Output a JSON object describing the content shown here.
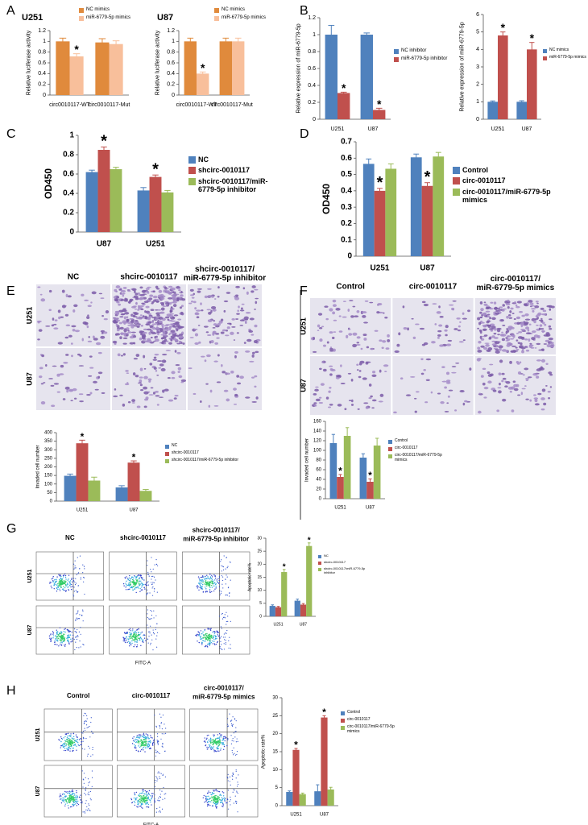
{
  "panels": {
    "labels": [
      "A",
      "B",
      "C",
      "D",
      "E",
      "F",
      "G",
      "H"
    ],
    "E": {
      "headers": [
        [
          "NC"
        ],
        [
          "shcirc-0010117"
        ],
        [
          "shcirc-0010117/",
          "miR-6779-5p inhibitor"
        ]
      ],
      "rows": [
        "U251",
        "U87"
      ]
    },
    "F": {
      "headers": [
        [
          "Control"
        ],
        [
          "circ-0010117"
        ],
        [
          "circ-0010117/",
          "miR-6779-5p mimics"
        ]
      ],
      "rows": [
        "U251",
        "U87"
      ]
    },
    "G": {
      "headers": [
        [
          "NC"
        ],
        [
          "shcirc-0010117"
        ],
        [
          "shcirc-0010117/",
          "miR-6779-5p inhibitor"
        ]
      ],
      "rows": [
        "U251",
        "U87"
      ],
      "x_label": "FITC-A"
    },
    "H": {
      "headers": [
        [
          "Control"
        ],
        [
          "circ-0010117"
        ],
        [
          "circ-0010117/",
          "miR-6779-5p mimics"
        ]
      ],
      "rows": [
        "U251",
        "U87"
      ],
      "x_label": "FITC-A"
    }
  },
  "chart_data": [
    {
      "type": "bar",
      "title": "U251",
      "y_label": "Relative luciferase activity",
      "categories": [
        "circ0010117-WT",
        "circ0010117-Mut"
      ],
      "series": [
        {
          "name": "NC mimics",
          "color": "#e08a3c",
          "values": [
            1.0,
            0.98
          ],
          "errors": [
            0.06,
            0.07
          ],
          "annotations": [
            null,
            null
          ]
        },
        {
          "name": "miR-6779-5p mimics",
          "color": "#f8bf9b",
          "values": [
            0.72,
            0.95
          ],
          "errors": [
            0.05,
            0.06
          ],
          "annotations": [
            "*",
            null
          ]
        }
      ],
      "ylim": [
        0,
        1.2
      ],
      "yticks": [
        0,
        0.2,
        0.4,
        0.6,
        0.8,
        1,
        1.2
      ]
    },
    {
      "type": "bar",
      "title": "U87",
      "y_label": "Relative luciferase activity",
      "categories": [
        "circ0010117-WT",
        "circ0010117-Mut"
      ],
      "series": [
        {
          "name": "NC mimics",
          "color": "#e08a3c",
          "values": [
            1.0,
            1.0
          ],
          "errors": [
            0.06,
            0.06
          ],
          "annotations": [
            null,
            null
          ]
        },
        {
          "name": "miR-6779-5p mimics",
          "color": "#f8bf9b",
          "values": [
            0.4,
            1.0
          ],
          "errors": [
            0.03,
            0.06
          ],
          "annotations": [
            "*",
            null
          ]
        }
      ],
      "ylim": [
        0,
        1.2
      ],
      "yticks": [
        0,
        0.2,
        0.4,
        0.6,
        0.8,
        1,
        1.2
      ]
    },
    {
      "type": "bar",
      "y_label": "Relative expression of miR-6779-5p",
      "categories": [
        "U251",
        "U87"
      ],
      "series": [
        {
          "name": "NC inhibitor",
          "color": "#4f81bd",
          "values": [
            1.0,
            1.0
          ],
          "errors": [
            0.11,
            0.02
          ],
          "annotations": [
            null,
            null
          ]
        },
        {
          "name": "miR-6779-5p inhibitor",
          "color": "#c0504d",
          "values": [
            0.31,
            0.11
          ],
          "errors": [
            0.01,
            0.02
          ],
          "annotations": [
            "*",
            "*"
          ]
        }
      ],
      "ylim": [
        0,
        1.2
      ],
      "yticks": [
        0,
        0.2,
        0.4,
        0.6,
        0.8,
        1,
        1.2
      ]
    },
    {
      "type": "bar",
      "y_label": "Relative expression of miR-6779-5p",
      "categories": [
        "U251",
        "U87"
      ],
      "series": [
        {
          "name": "NC mimics",
          "color": "#4f81bd",
          "values": [
            1.0,
            1.0
          ],
          "errors": [
            0.05,
            0.06
          ],
          "annotations": [
            null,
            null
          ]
        },
        {
          "name": "miR-6779-5p mimics",
          "color": "#c0504d",
          "values": [
            4.8,
            4.0
          ],
          "errors": [
            0.2,
            0.4
          ],
          "annotations": [
            "*",
            "*"
          ]
        }
      ],
      "ylim": [
        0,
        6
      ],
      "yticks": [
        0,
        1,
        2,
        3,
        4,
        5,
        6
      ]
    },
    {
      "type": "bar",
      "y_label": "OD450",
      "categories": [
        "U87",
        "U251"
      ],
      "series": [
        {
          "name": "NC",
          "color": "#4f81bd",
          "values": [
            0.62,
            0.43
          ],
          "errors": [
            0.02,
            0.03
          ],
          "annotations": [
            null,
            null
          ]
        },
        {
          "name": "shcirc-0010117",
          "color": "#c0504d",
          "values": [
            0.85,
            0.57
          ],
          "errors": [
            0.03,
            0.02
          ],
          "annotations": [
            "*",
            "*"
          ]
        },
        {
          "name": "shcirc-0010117/miR-6779-5p inhibitor",
          "color": "#9bbb59",
          "values": [
            0.65,
            0.41
          ],
          "errors": [
            0.02,
            0.02
          ],
          "annotations": [
            null,
            null
          ]
        }
      ],
      "ylim": [
        0,
        1
      ],
      "yticks": [
        0,
        0.2,
        0.4,
        0.6,
        0.8,
        1
      ]
    },
    {
      "type": "bar",
      "y_label": "OD450",
      "categories": [
        "U251",
        "U87"
      ],
      "series": [
        {
          "name": "Control",
          "color": "#4f81bd",
          "values": [
            0.565,
            0.605
          ],
          "errors": [
            0.03,
            0.02
          ],
          "annotations": [
            null,
            null
          ]
        },
        {
          "name": "circ-0010117",
          "color": "#c0504d",
          "values": [
            0.4,
            0.43
          ],
          "errors": [
            0.015,
            0.02
          ],
          "annotations": [
            "*",
            "*"
          ]
        },
        {
          "name": "circ-0010117/miR-6779-5p mimics",
          "color": "#9bbb59",
          "values": [
            0.535,
            0.61
          ],
          "errors": [
            0.03,
            0.025
          ],
          "annotations": [
            null,
            null
          ]
        }
      ],
      "ylim": [
        0,
        0.7
      ],
      "yticks": [
        0,
        0.1,
        0.2,
        0.3,
        0.4,
        0.5,
        0.6,
        0.7
      ]
    },
    {
      "type": "bar",
      "y_label": "Invaded cell number",
      "categories": [
        "U251",
        "U87"
      ],
      "series": [
        {
          "name": "NC",
          "color": "#4f81bd",
          "values": [
            148,
            80
          ],
          "errors": [
            10,
            10
          ],
          "annotations": [
            null,
            null
          ]
        },
        {
          "name": "shcirc-0010117",
          "color": "#c0504d",
          "values": [
            338,
            225
          ],
          "errors": [
            18,
            10
          ],
          "annotations": [
            "*",
            "*"
          ]
        },
        {
          "name": "shcirc-0010117/miR-6779-5p inhibitor",
          "color": "#9bbb59",
          "values": [
            120,
            60
          ],
          "errors": [
            20,
            8
          ],
          "annotations": [
            null,
            null
          ]
        }
      ],
      "ylim": [
        0,
        400
      ],
      "yticks": [
        0,
        50,
        100,
        150,
        200,
        250,
        300,
        350,
        400
      ]
    },
    {
      "type": "bar",
      "y_label": "Invaded cell number",
      "categories": [
        "U251",
        "U87"
      ],
      "series": [
        {
          "name": "Control",
          "color": "#4f81bd",
          "values": [
            115,
            85
          ],
          "errors": [
            18,
            8
          ],
          "annotations": [
            null,
            null
          ]
        },
        {
          "name": "circ-0010117",
          "color": "#c0504d",
          "values": [
            45,
            35
          ],
          "errors": [
            5,
            6
          ],
          "annotations": [
            "*",
            "*"
          ]
        },
        {
          "name": "circ-0010117/miR-6779-5p mimics",
          "color": "#9bbb59",
          "values": [
            130,
            110
          ],
          "errors": [
            17,
            15
          ],
          "annotations": [
            null,
            null
          ]
        }
      ],
      "ylim": [
        0,
        160
      ],
      "yticks": [
        0,
        20,
        40,
        60,
        80,
        100,
        120,
        140,
        160
      ]
    },
    {
      "type": "bar",
      "y_label": "Apoptotic rate%",
      "categories": [
        "U251",
        "U87"
      ],
      "series": [
        {
          "name": "NC",
          "color": "#4f81bd",
          "values": [
            4,
            6
          ],
          "errors": [
            0.4,
            0.6
          ],
          "annotations": [
            null,
            null
          ]
        },
        {
          "name": "shcirc-0010117",
          "color": "#c0504d",
          "values": [
            3.5,
            4.5
          ],
          "errors": [
            0.3,
            0.4
          ],
          "annotations": [
            null,
            null
          ]
        },
        {
          "name": "shcirc-0010117/miR-6779-5p inhibitor",
          "color": "#9bbb59",
          "values": [
            17,
            27
          ],
          "errors": [
            1,
            1.2
          ],
          "annotations": [
            "*",
            "*"
          ]
        }
      ],
      "ylim": [
        0,
        30
      ],
      "yticks": [
        0,
        5,
        10,
        15,
        20,
        25,
        30
      ]
    },
    {
      "type": "bar",
      "y_label": "Apoptotic rate%",
      "categories": [
        "U251",
        "U87"
      ],
      "series": [
        {
          "name": "Control",
          "color": "#4f81bd",
          "values": [
            3.8,
            4
          ],
          "errors": [
            0.3,
            1.8
          ],
          "annotations": [
            null,
            null
          ]
        },
        {
          "name": "circ-0010117",
          "color": "#c0504d",
          "values": [
            15.5,
            24.5
          ],
          "errors": [
            0.4,
            0.5
          ],
          "annotations": [
            "*",
            "*"
          ]
        },
        {
          "name": "circ-0010117/miR-6779-5p mimics",
          "color": "#9bbb59",
          "values": [
            3.2,
            4.5
          ],
          "errors": [
            0.3,
            0.6
          ],
          "annotations": [
            null,
            null
          ]
        }
      ],
      "ylim": [
        0,
        30
      ],
      "yticks": [
        0,
        5,
        10,
        15,
        20,
        25,
        30
      ]
    }
  ]
}
